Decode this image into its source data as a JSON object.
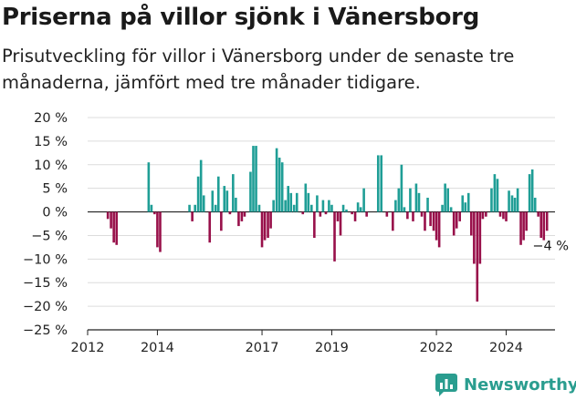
{
  "header": {
    "title": "Priserna på villor sjönk i Vänersborg",
    "subtitle": "Prisutveckling för villor i Vänersborg under de senaste tre månaderna, jämfört med tre månader tidigare."
  },
  "brand": {
    "name": "Newsworthy"
  },
  "colors": {
    "positive": "#1f9e96",
    "negative": "#98104a",
    "grid": "#dcdcdc",
    "zero": "#222222",
    "brand": "#2a9d8f"
  },
  "chart_data": {
    "type": "bar",
    "ylim": [
      -25,
      20
    ],
    "yticks": [
      20,
      15,
      10,
      5,
      0,
      -5,
      -10,
      -15,
      -20,
      -25
    ],
    "ytick_labels": [
      "20 %",
      "15 %",
      "10 %",
      "5 %",
      "0 %",
      "−5 %",
      "−10 %",
      "−15 %",
      "−20 %",
      "−25 %"
    ],
    "xlim": [
      2012.0,
      2025.4
    ],
    "xticks": [
      2012,
      2014,
      2017,
      2019,
      2022,
      2024
    ],
    "xtick_labels": [
      "2012",
      "2014",
      "2017",
      "2019",
      "2022",
      "2024"
    ],
    "annotation": {
      "text": "−4 %",
      "x": 2025.17,
      "y": -4
    },
    "series": [
      {
        "x": 2012.58,
        "values": [
          -1.5
        ]
      },
      {
        "x": 2012.67,
        "values": [
          -3.5
        ]
      },
      {
        "x": 2012.75,
        "values": [
          -6.5
        ]
      },
      {
        "x": 2012.83,
        "values": [
          -7
        ]
      },
      {
        "x": 2013.75,
        "values": [
          10.5
        ]
      },
      {
        "x": 2013.83,
        "values": [
          1.5
        ]
      },
      {
        "x": 2013.92,
        "values": [
          -0.5
        ]
      },
      {
        "x": 2014.0,
        "values": [
          -7.5
        ]
      },
      {
        "x": 2014.08,
        "values": [
          -8.5
        ]
      },
      {
        "x": 2014.92,
        "values": [
          1.5
        ]
      },
      {
        "x": 2015.0,
        "values": [
          -2
        ]
      },
      {
        "x": 2015.08,
        "values": [
          1.5
        ]
      },
      {
        "x": 2015.17,
        "values": [
          7.5
        ]
      },
      {
        "x": 2015.25,
        "values": [
          11
        ]
      },
      {
        "x": 2015.33,
        "values": [
          3.5
        ]
      },
      {
        "x": 2015.5,
        "values": [
          -6.5
        ]
      },
      {
        "x": 2015.58,
        "values": [
          4.5
        ]
      },
      {
        "x": 2015.67,
        "values": [
          1.5
        ]
      },
      {
        "x": 2015.75,
        "values": [
          7.5
        ]
      },
      {
        "x": 2015.83,
        "values": [
          -4
        ]
      },
      {
        "x": 2015.92,
        "values": [
          5.5
        ]
      },
      {
        "x": 2016.0,
        "values": [
          4.5
        ]
      },
      {
        "x": 2016.08,
        "values": [
          -0.5
        ]
      },
      {
        "x": 2016.17,
        "values": [
          8
        ]
      },
      {
        "x": 2016.25,
        "values": [
          3
        ]
      },
      {
        "x": 2016.33,
        "values": [
          -3
        ]
      },
      {
        "x": 2016.42,
        "values": [
          -2
        ]
      },
      {
        "x": 2016.5,
        "values": [
          -1
        ]
      },
      {
        "x": 2016.67,
        "values": [
          8.5
        ]
      },
      {
        "x": 2016.75,
        "values": [
          14
        ]
      },
      {
        "x": 2016.83,
        "values": [
          14
        ]
      },
      {
        "x": 2016.92,
        "values": [
          1.5
        ]
      },
      {
        "x": 2017.0,
        "values": [
          -7.5
        ]
      },
      {
        "x": 2017.08,
        "values": [
          -6
        ]
      },
      {
        "x": 2017.17,
        "values": [
          -5.5
        ]
      },
      {
        "x": 2017.25,
        "values": [
          -3.5
        ]
      },
      {
        "x": 2017.33,
        "values": [
          2.5
        ]
      },
      {
        "x": 2017.42,
        "values": [
          13.5
        ]
      },
      {
        "x": 2017.5,
        "values": [
          11.5
        ]
      },
      {
        "x": 2017.58,
        "values": [
          10.5
        ]
      },
      {
        "x": 2017.67,
        "values": [
          2.5
        ]
      },
      {
        "x": 2017.75,
        "values": [
          5.5
        ]
      },
      {
        "x": 2017.83,
        "values": [
          4
        ]
      },
      {
        "x": 2017.92,
        "values": [
          1.5
        ]
      },
      {
        "x": 2018.0,
        "values": [
          4
        ]
      },
      {
        "x": 2018.17,
        "values": [
          -0.5
        ]
      },
      {
        "x": 2018.25,
        "values": [
          6
        ]
      },
      {
        "x": 2018.33,
        "values": [
          4
        ]
      },
      {
        "x": 2018.42,
        "values": [
          1.5
        ]
      },
      {
        "x": 2018.5,
        "values": [
          -5.5
        ]
      },
      {
        "x": 2018.58,
        "values": [
          3.5
        ]
      },
      {
        "x": 2018.67,
        "values": [
          -1
        ]
      },
      {
        "x": 2018.75,
        "values": [
          2.5
        ]
      },
      {
        "x": 2018.83,
        "values": [
          -0.5
        ]
      },
      {
        "x": 2018.92,
        "values": [
          2.5
        ]
      },
      {
        "x": 2019.0,
        "values": [
          1.5
        ]
      },
      {
        "x": 2019.08,
        "values": [
          -10.5
        ]
      },
      {
        "x": 2019.17,
        "values": [
          -2
        ]
      },
      {
        "x": 2019.25,
        "values": [
          -5
        ]
      },
      {
        "x": 2019.33,
        "values": [
          1.5
        ]
      },
      {
        "x": 2019.42,
        "values": [
          0.5
        ]
      },
      {
        "x": 2019.58,
        "values": [
          -0.5
        ]
      },
      {
        "x": 2019.67,
        "values": [
          -2
        ]
      },
      {
        "x": 2019.75,
        "values": [
          2
        ]
      },
      {
        "x": 2019.83,
        "values": [
          1
        ]
      },
      {
        "x": 2019.92,
        "values": [
          5
        ]
      },
      {
        "x": 2020.0,
        "values": [
          -1
        ]
      },
      {
        "x": 2020.33,
        "values": [
          12
        ]
      },
      {
        "x": 2020.42,
        "values": [
          12
        ]
      },
      {
        "x": 2020.58,
        "values": [
          -1
        ]
      },
      {
        "x": 2020.75,
        "values": [
          -4
        ]
      },
      {
        "x": 2020.83,
        "values": [
          2.5
        ]
      },
      {
        "x": 2020.92,
        "values": [
          5
        ]
      },
      {
        "x": 2021.0,
        "values": [
          10
        ]
      },
      {
        "x": 2021.08,
        "values": [
          1
        ]
      },
      {
        "x": 2021.17,
        "values": [
          -1.5
        ]
      },
      {
        "x": 2021.25,
        "values": [
          5
        ]
      },
      {
        "x": 2021.33,
        "values": [
          -2
        ]
      },
      {
        "x": 2021.42,
        "values": [
          6
        ]
      },
      {
        "x": 2021.5,
        "values": [
          4
        ]
      },
      {
        "x": 2021.58,
        "values": [
          -1
        ]
      },
      {
        "x": 2021.67,
        "values": [
          -4
        ]
      },
      {
        "x": 2021.75,
        "values": [
          3
        ]
      },
      {
        "x": 2021.83,
        "values": [
          -3
        ]
      },
      {
        "x": 2021.92,
        "values": [
          -4
        ]
      },
      {
        "x": 2022.0,
        "values": [
          -6
        ]
      },
      {
        "x": 2022.08,
        "values": [
          -7.5
        ]
      },
      {
        "x": 2022.17,
        "values": [
          1.5
        ]
      },
      {
        "x": 2022.25,
        "values": [
          6
        ]
      },
      {
        "x": 2022.33,
        "values": [
          5
        ]
      },
      {
        "x": 2022.42,
        "values": [
          1
        ]
      },
      {
        "x": 2022.5,
        "values": [
          -5
        ]
      },
      {
        "x": 2022.58,
        "values": [
          -3.5
        ]
      },
      {
        "x": 2022.67,
        "values": [
          -2
        ]
      },
      {
        "x": 2022.75,
        "values": [
          3.5
        ]
      },
      {
        "x": 2022.83,
        "values": [
          2
        ]
      },
      {
        "x": 2022.92,
        "values": [
          4
        ]
      },
      {
        "x": 2023.0,
        "values": [
          -5
        ]
      },
      {
        "x": 2023.08,
        "values": [
          -11
        ]
      },
      {
        "x": 2023.17,
        "values": [
          -19
        ]
      },
      {
        "x": 2023.25,
        "values": [
          -11
        ]
      },
      {
        "x": 2023.33,
        "values": [
          -1.5
        ]
      },
      {
        "x": 2023.42,
        "values": [
          -1
        ]
      },
      {
        "x": 2023.58,
        "values": [
          5
        ]
      },
      {
        "x": 2023.67,
        "values": [
          8
        ]
      },
      {
        "x": 2023.75,
        "values": [
          7
        ]
      },
      {
        "x": 2023.83,
        "values": [
          -1
        ]
      },
      {
        "x": 2023.92,
        "values": [
          -1.5
        ]
      },
      {
        "x": 2024.0,
        "values": [
          -2
        ]
      },
      {
        "x": 2024.08,
        "values": [
          4.5
        ]
      },
      {
        "x": 2024.17,
        "values": [
          3.5
        ]
      },
      {
        "x": 2024.25,
        "values": [
          3
        ]
      },
      {
        "x": 2024.33,
        "values": [
          5
        ]
      },
      {
        "x": 2024.42,
        "values": [
          -7
        ]
      },
      {
        "x": 2024.5,
        "values": [
          -6
        ]
      },
      {
        "x": 2024.58,
        "values": [
          -4
        ]
      },
      {
        "x": 2024.67,
        "values": [
          8
        ]
      },
      {
        "x": 2024.75,
        "values": [
          9
        ]
      },
      {
        "x": 2024.83,
        "values": [
          3
        ]
      },
      {
        "x": 2024.92,
        "values": [
          -1
        ]
      },
      {
        "x": 2025.0,
        "values": [
          -5.5
        ]
      },
      {
        "x": 2025.08,
        "values": [
          -6
        ]
      },
      {
        "x": 2025.17,
        "values": [
          -4
        ]
      }
    ]
  }
}
